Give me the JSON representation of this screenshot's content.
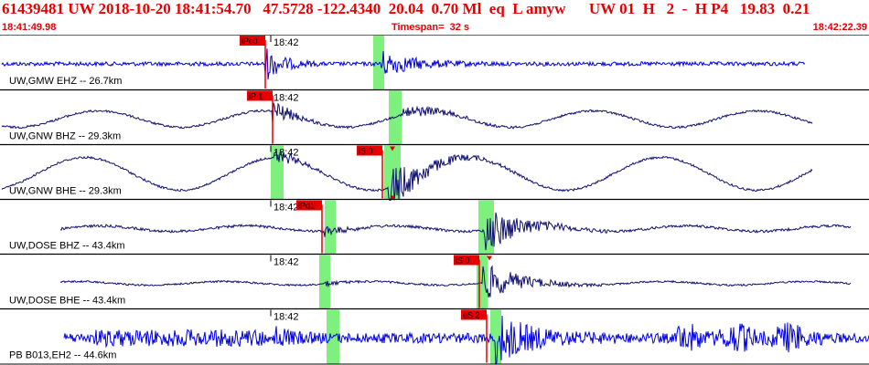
{
  "header": {
    "title": "61439481 UW 2018-10-20 18:41:54.70   47.5728 -122.4340  20.04  0.70 Ml  eq  L amyw      UW 01  H   2  -  H P4   19.83  0.21",
    "start_time": "18:41:49.98",
    "timespan": "Timespan=  32 s",
    "end_time": "18:42:22.39"
  },
  "colors": {
    "header_text": "#e80000",
    "trace_blue": "#0000e0",
    "trace_navy": "#101070",
    "pick_red": "#e80000",
    "pick_window_green": "#7ef07e",
    "separator": "#000000"
  },
  "panels": [
    {
      "label": "UW,GMW EHZ -- 26.7km",
      "minute_label": "18:42",
      "trace_color": "blue",
      "pick": {
        "label": "iPc0",
        "time": 18.0
      }
    },
    {
      "label": "UW,GNW BHZ -- 29.3km",
      "minute_label": "18:42",
      "trace_color": "navy",
      "pick": {
        "label": "iP 1",
        "time": 18.1
      }
    },
    {
      "label": "UW,GNW BHE -- 29.3km",
      "minute_label": "18:42",
      "trace_color": "navy",
      "pick": {
        "label": "iS 0",
        "time": 24.3
      }
    },
    {
      "label": "UW,DOSE BHZ -- 43.4km",
      "minute_label": "18:42",
      "trace_color": "navy",
      "pick": {
        "label": "iPd1",
        "time": 19.9
      }
    },
    {
      "label": "UW,DOSE BHE -- 43.4km",
      "minute_label": "18:42",
      "trace_color": "navy",
      "pick": {
        "label": "iS 0",
        "time": 30.3
      }
    },
    {
      "label": "PB B013,EH2 -- 44.6km",
      "minute_label": "18:42",
      "trace_color": "blue",
      "pick": {
        "label": "eS 2",
        "time": 30.6
      }
    }
  ]
}
